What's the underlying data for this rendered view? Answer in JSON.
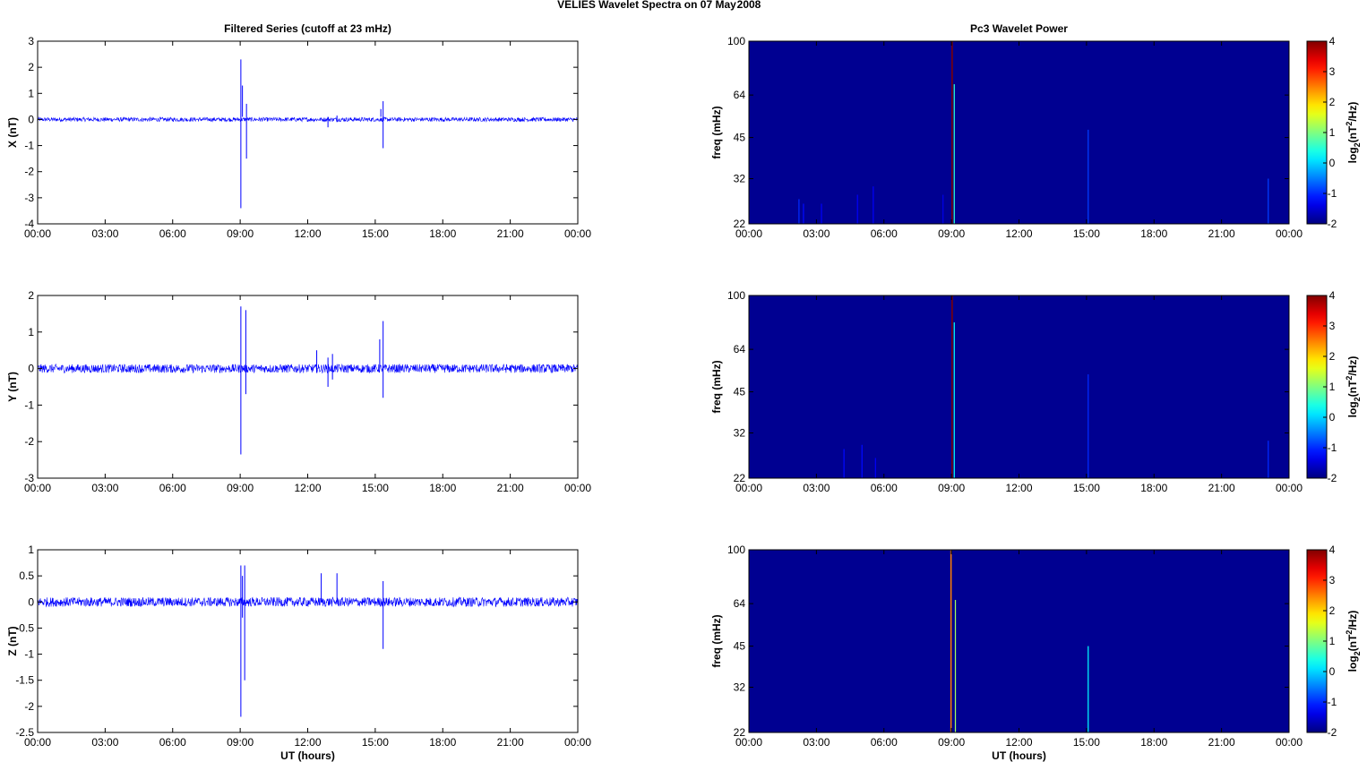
{
  "figure": {
    "suptitle_station": "VELIES Wavelet Spectra on 07 May",
    "suptitle_year": "2008"
  },
  "chart_data": [
    {
      "type": "line",
      "title": "Filtered Series (cutoff at 23 mHz)",
      "ylabel": "X (nT)",
      "xlabel": "",
      "xlim": [
        0,
        24
      ],
      "ylim": [
        -4,
        3
      ],
      "x_ticks": [
        0,
        3,
        6,
        9,
        12,
        15,
        18,
        21,
        24
      ],
      "x_tick_labels": [
        "00:00",
        "03:00",
        "06:00",
        "09:00",
        "12:00",
        "15:00",
        "18:00",
        "21:00",
        "00:00"
      ],
      "y_ticks": [
        3,
        2,
        1,
        0,
        -1,
        -2,
        -3,
        -4
      ],
      "y_tick_labels": [
        "3",
        "2",
        "1",
        "0",
        "-1",
        "-2",
        "-3",
        "-4"
      ],
      "series": [
        {
          "color": "#0000ff",
          "noise_amplitude": 0.08,
          "spikes": [
            [
              9.03,
              2.3,
              -3.4
            ],
            [
              9.1,
              1.3,
              0.1
            ],
            [
              9.28,
              0.6,
              -1.5
            ],
            [
              12.9,
              0.1,
              -0.3
            ],
            [
              13.3,
              0.15,
              -0.1
            ],
            [
              15.35,
              0.7,
              -1.1
            ],
            [
              15.25,
              0.4,
              0.1
            ]
          ]
        }
      ]
    },
    {
      "type": "line",
      "title": "",
      "ylabel": "Y (nT)",
      "xlabel": "",
      "xlim": [
        0,
        24
      ],
      "ylim": [
        -3,
        2
      ],
      "x_ticks": [
        0,
        3,
        6,
        9,
        12,
        15,
        18,
        21,
        24
      ],
      "x_tick_labels": [
        "00:00",
        "03:00",
        "06:00",
        "09:00",
        "12:00",
        "15:00",
        "18:00",
        "21:00",
        "00:00"
      ],
      "y_ticks": [
        2,
        1,
        0,
        -1,
        -2,
        -3
      ],
      "y_tick_labels": [
        "2",
        "1",
        "0",
        "-1",
        "-2",
        "-3"
      ],
      "series": [
        {
          "color": "#0000ff",
          "noise_amplitude": 0.12,
          "spikes": [
            [
              9.03,
              1.7,
              -2.35
            ],
            [
              9.25,
              1.6,
              -0.7
            ],
            [
              12.4,
              0.5,
              -0.1
            ],
            [
              12.9,
              0.3,
              -0.5
            ],
            [
              13.1,
              0.4,
              -0.3
            ],
            [
              15.35,
              1.3,
              -0.8
            ],
            [
              15.2,
              0.8,
              0.0
            ]
          ]
        }
      ]
    },
    {
      "type": "line",
      "title": "",
      "ylabel": "Z (nT)",
      "xlabel": "UT (hours)",
      "xlim": [
        0,
        24
      ],
      "ylim": [
        -2.5,
        1
      ],
      "x_ticks": [
        0,
        3,
        6,
        9,
        12,
        15,
        18,
        21,
        24
      ],
      "x_tick_labels": [
        "00:00",
        "03:00",
        "06:00",
        "09:00",
        "12:00",
        "15:00",
        "18:00",
        "21:00",
        "00:00"
      ],
      "y_ticks": [
        1,
        0.5,
        0,
        -0.5,
        -1,
        -1.5,
        -2,
        -2.5
      ],
      "y_tick_labels": [
        "1",
        "0.5",
        "0",
        "-0.5",
        "-1",
        "-1.5",
        "-2",
        "-2.5"
      ],
      "series": [
        {
          "color": "#0000ff",
          "noise_amplitude": 0.09,
          "spikes": [
            [
              9.03,
              0.7,
              -2.2
            ],
            [
              9.2,
              0.7,
              -1.5
            ],
            [
              9.1,
              0.5,
              -0.3
            ],
            [
              12.6,
              0.55,
              0.0
            ],
            [
              13.3,
              0.55,
              0.0
            ],
            [
              15.35,
              0.4,
              -0.9
            ]
          ]
        }
      ]
    },
    {
      "type": "heatmap",
      "title": "Pc3 Wavelet Power",
      "ylabel": "freq (mHz)",
      "xlabel": "",
      "xlim": [
        0,
        24
      ],
      "ylim": [
        22,
        100
      ],
      "y_scale": "log",
      "x_ticks": [
        0,
        3,
        6,
        9,
        12,
        15,
        18,
        21,
        24
      ],
      "x_tick_labels": [
        "00:00",
        "03:00",
        "06:00",
        "09:00",
        "12:00",
        "15:00",
        "18:00",
        "21:00",
        "00:00"
      ],
      "y_ticks": [
        100,
        64,
        45,
        32,
        22
      ],
      "y_tick_labels": [
        "100",
        "64",
        "45",
        "32",
        "22"
      ],
      "background_value": -1.9,
      "colorbar": {
        "ticks": [
          4,
          3,
          2,
          1,
          0,
          -1,
          -2
        ],
        "tick_labels": [
          "4",
          "3",
          "2",
          "1",
          "0",
          "-1",
          "-2"
        ],
        "range": [
          -2,
          4
        ],
        "colormap": "jet",
        "label_base": "log",
        "label_sub": "2",
        "label_mid": "(nT",
        "label_sup": "2",
        "label_end": "/Hz)"
      },
      "features": [
        [
          9.0,
          22,
          100,
          4.0,
          0.06
        ],
        [
          9.1,
          22,
          70,
          0.5,
          0.05
        ],
        [
          15.05,
          22,
          48,
          -0.9,
          0.05
        ],
        [
          23.05,
          22,
          32,
          -0.9,
          0.05
        ],
        [
          2.2,
          22,
          27,
          -1.0,
          0.05
        ],
        [
          2.4,
          22,
          26,
          -1.2,
          0.05
        ],
        [
          3.2,
          22,
          26,
          -1.3,
          0.05
        ],
        [
          4.8,
          22,
          28,
          -1.3,
          0.05
        ],
        [
          5.5,
          22,
          30,
          -1.3,
          0.05
        ],
        [
          8.6,
          22,
          28,
          -1.4,
          0.05
        ]
      ]
    },
    {
      "type": "heatmap",
      "title": "",
      "ylabel": "freq (mHz)",
      "xlabel": "",
      "xlim": [
        0,
        24
      ],
      "ylim": [
        22,
        100
      ],
      "y_scale": "log",
      "x_ticks": [
        0,
        3,
        6,
        9,
        12,
        15,
        18,
        21,
        24
      ],
      "x_tick_labels": [
        "00:00",
        "03:00",
        "06:00",
        "09:00",
        "12:00",
        "15:00",
        "18:00",
        "21:00",
        "00:00"
      ],
      "y_ticks": [
        100,
        64,
        45,
        32,
        22
      ],
      "y_tick_labels": [
        "100",
        "64",
        "45",
        "32",
        "22"
      ],
      "background_value": -1.9,
      "colorbar": {
        "ticks": [
          4,
          3,
          2,
          1,
          0,
          -1,
          -2
        ],
        "tick_labels": [
          "4",
          "3",
          "2",
          "1",
          "0",
          "-1",
          "-2"
        ],
        "range": [
          -2,
          4
        ],
        "colormap": "jet",
        "label_base": "log",
        "label_sub": "2",
        "label_mid": "(nT",
        "label_sup": "2",
        "label_end": "/Hz)"
      },
      "features": [
        [
          9.0,
          22,
          100,
          4.0,
          0.06
        ],
        [
          9.1,
          22,
          80,
          0.3,
          0.05
        ],
        [
          15.05,
          22,
          52,
          -1.0,
          0.05
        ],
        [
          23.05,
          22,
          30,
          -1.0,
          0.05
        ],
        [
          4.2,
          22,
          28,
          -1.2,
          0.05
        ],
        [
          5.0,
          22,
          29,
          -1.2,
          0.05
        ],
        [
          5.6,
          22,
          26,
          -1.3,
          0.05
        ]
      ]
    },
    {
      "type": "heatmap",
      "title": "",
      "ylabel": "freq (mHz)",
      "xlabel": "UT (hours)",
      "xlim": [
        0,
        24
      ],
      "ylim": [
        22,
        100
      ],
      "y_scale": "log",
      "x_ticks": [
        0,
        3,
        6,
        9,
        12,
        15,
        18,
        21,
        24
      ],
      "x_tick_labels": [
        "00:00",
        "03:00",
        "06:00",
        "09:00",
        "12:00",
        "15:00",
        "18:00",
        "21:00",
        "00:00"
      ],
      "y_ticks": [
        100,
        64,
        45,
        32,
        22
      ],
      "y_tick_labels": [
        "100",
        "64",
        "45",
        "32",
        "22"
      ],
      "background_value": -1.9,
      "colorbar": {
        "ticks": [
          4,
          3,
          2,
          1,
          0,
          -1,
          -2
        ],
        "tick_labels": [
          "4",
          "3",
          "2",
          "1",
          "0",
          "-1",
          "-2"
        ],
        "range": [
          -2,
          4
        ],
        "colormap": "jet",
        "label_base": "log",
        "label_sub": "2",
        "label_mid": "(nT",
        "label_sup": "2",
        "label_end": "/Hz)"
      },
      "features": [
        [
          8.95,
          22,
          100,
          2.5,
          0.06
        ],
        [
          9.15,
          22,
          66,
          1.2,
          0.05
        ],
        [
          15.05,
          22,
          45,
          0.2,
          0.05
        ]
      ]
    }
  ]
}
